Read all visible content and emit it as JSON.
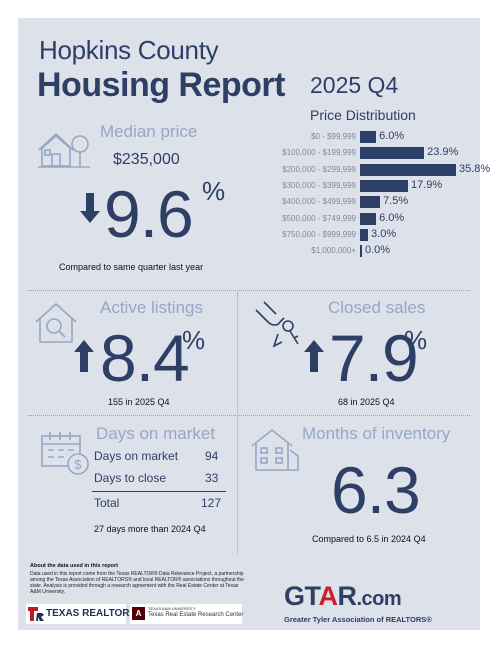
{
  "header": {
    "county": "Hopkins County",
    "report": "Housing Report",
    "quarter": "2025 Q4"
  },
  "price_distribution": {
    "title": "Price Distribution",
    "rows": [
      {
        "label": "$0 - $99,999",
        "value_text": "6.0%",
        "value": 6.0
      },
      {
        "label": "$100,000 - $199,999",
        "value_text": "23.9%",
        "value": 23.9
      },
      {
        "label": "$200,000 - $299,999",
        "value_text": "35.8%",
        "value": 35.8
      },
      {
        "label": "$300,000 - $399,999",
        "value_text": "17.9%",
        "value": 17.9
      },
      {
        "label": "$400,000 - $499,999",
        "value_text": "7.5%",
        "value": 7.5
      },
      {
        "label": "$500,000 - $749,999",
        "value_text": "6.0%",
        "value": 6.0
      },
      {
        "label": "$750,000 - $999,999",
        "value_text": "3.0%",
        "value": 3.0
      },
      {
        "label": "$1,000,000+",
        "value_text": "0.0%",
        "value": 0.0
      }
    ]
  },
  "median_price": {
    "title": "Median price",
    "price": "$235,000",
    "change": "9.6",
    "percent": "%",
    "direction": "down",
    "note": "Compared to same quarter last year"
  },
  "active_listings": {
    "title": "Active listings",
    "change": "8.4",
    "percent": "%",
    "direction": "up",
    "note": "155 in 2025 Q4"
  },
  "closed_sales": {
    "title": "Closed sales",
    "change": "7.9",
    "percent": "%",
    "direction": "up",
    "note": "68 in 2025 Q4"
  },
  "days_on_market": {
    "title": "Days on market",
    "rows": [
      {
        "label": "Days on market",
        "value": "94"
      },
      {
        "label": "Days to close",
        "value": "33"
      }
    ],
    "total_label": "Total",
    "total_value": "127",
    "note": "27 days more than 2024 Q4"
  },
  "months_inventory": {
    "title": "Months of inventory",
    "value": "6.3",
    "note": "Compared to 6.5 in 2024 Q4"
  },
  "footer": {
    "about_title": "About the data used in this report",
    "about_text": "Data used in this report come from the Texas REALTOR® Data Relevance Project, a partnership among the Texas Association of REALTORS® and local REALTOR® associations throughout the state. Analysis is provided through a research agreement with the Real Estate Center at Texas A&M University.",
    "texas_realtors": "TEXAS REALTORS",
    "tamu_small": "TEXAS A&M UNIVERSITY",
    "tamu_center": "Texas Real Estate Research Center",
    "gtar_logo": "GTAR.com",
    "gtar_tagline": "Greater Tyler Association of REALTORS®"
  },
  "colors": {
    "navy": "#2e3f66",
    "steel": "#97a7c4",
    "background": "#dde1ea",
    "gtar_red": "#c8202f"
  }
}
